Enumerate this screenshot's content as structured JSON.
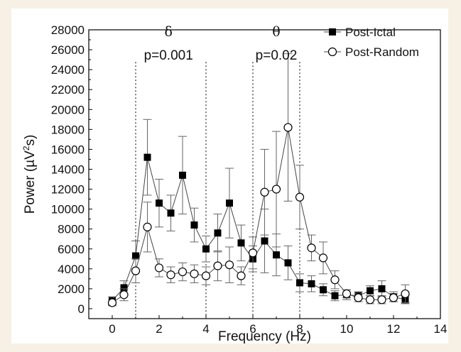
{
  "chart_data": {
    "type": "line",
    "xlabel": "Frequency (Hz)",
    "ylabel_main": "Power (µV",
    "ylabel_sup": "2",
    "ylabel_tail": "s)",
    "xlim": [
      -1,
      14
    ],
    "ylim": [
      -1000,
      28000
    ],
    "x_ticks": [
      0,
      2,
      4,
      6,
      8,
      10,
      12,
      14
    ],
    "y_ticks": [
      0,
      2000,
      4000,
      6000,
      8000,
      10000,
      12000,
      14000,
      16000,
      18000,
      20000,
      22000,
      24000,
      26000,
      28000
    ],
    "grid": false,
    "legend_position": "top-right",
    "vlines": [
      1,
      4,
      6,
      8
    ],
    "annotations": [
      {
        "text": "δ",
        "x": 2.4,
        "y": 28000,
        "style": "greek"
      },
      {
        "text": "p=0.001",
        "x": 2.4,
        "y": 26000,
        "style": "plain"
      },
      {
        "text": "θ",
        "x": 7.0,
        "y": 28000,
        "style": "greek"
      },
      {
        "text": "p=0.02",
        "x": 7.0,
        "y": 26000,
        "style": "plain"
      }
    ],
    "series": [
      {
        "name": "Post-Ictal",
        "marker": "filled-square",
        "color": "#000000",
        "x": [
          0,
          0.5,
          1,
          1.5,
          2,
          2.5,
          3,
          3.5,
          4,
          4.5,
          5,
          5.5,
          6,
          6.5,
          7,
          7.5,
          8,
          8.5,
          9,
          9.5,
          10,
          10.5,
          11,
          11.5,
          12,
          12.5
        ],
        "y": [
          800,
          2100,
          5300,
          15200,
          10600,
          9600,
          13400,
          8400,
          6000,
          7600,
          10600,
          6600,
          5000,
          6800,
          5400,
          4600,
          2600,
          2500,
          1900,
          1300,
          1400,
          1300,
          1800,
          2000,
          1200,
          900
        ],
        "err": [
          400,
          700,
          1500,
          3800,
          2400,
          1800,
          3900,
          1700,
          1300,
          1900,
          3500,
          1800,
          1300,
          3200,
          2100,
          1700,
          900,
          800,
          600,
          500,
          500,
          400,
          500,
          800,
          500,
          400
        ]
      },
      {
        "name": "Post-Random",
        "marker": "open-circle",
        "color": "#000000",
        "x": [
          0,
          0.5,
          1,
          1.5,
          2,
          2.5,
          3,
          3.5,
          4,
          4.5,
          5,
          5.5,
          6,
          6.5,
          7,
          7.5,
          8,
          8.5,
          9,
          9.5,
          10,
          10.5,
          11,
          11.5,
          12,
          12.5
        ],
        "y": [
          600,
          1400,
          3800,
          8200,
          4100,
          3400,
          3700,
          3500,
          3300,
          4300,
          4400,
          3300,
          5600,
          11700,
          12000,
          18200,
          11200,
          6100,
          5100,
          2900,
          1500,
          1100,
          900,
          900,
          1100,
          1500
        ],
        "err": [
          300,
          600,
          1200,
          2500,
          900,
          800,
          900,
          900,
          900,
          1500,
          1800,
          900,
          1600,
          4300,
          5800,
          7400,
          3200,
          1300,
          1600,
          900,
          400,
          400,
          400,
          400,
          400,
          900
        ]
      }
    ]
  }
}
